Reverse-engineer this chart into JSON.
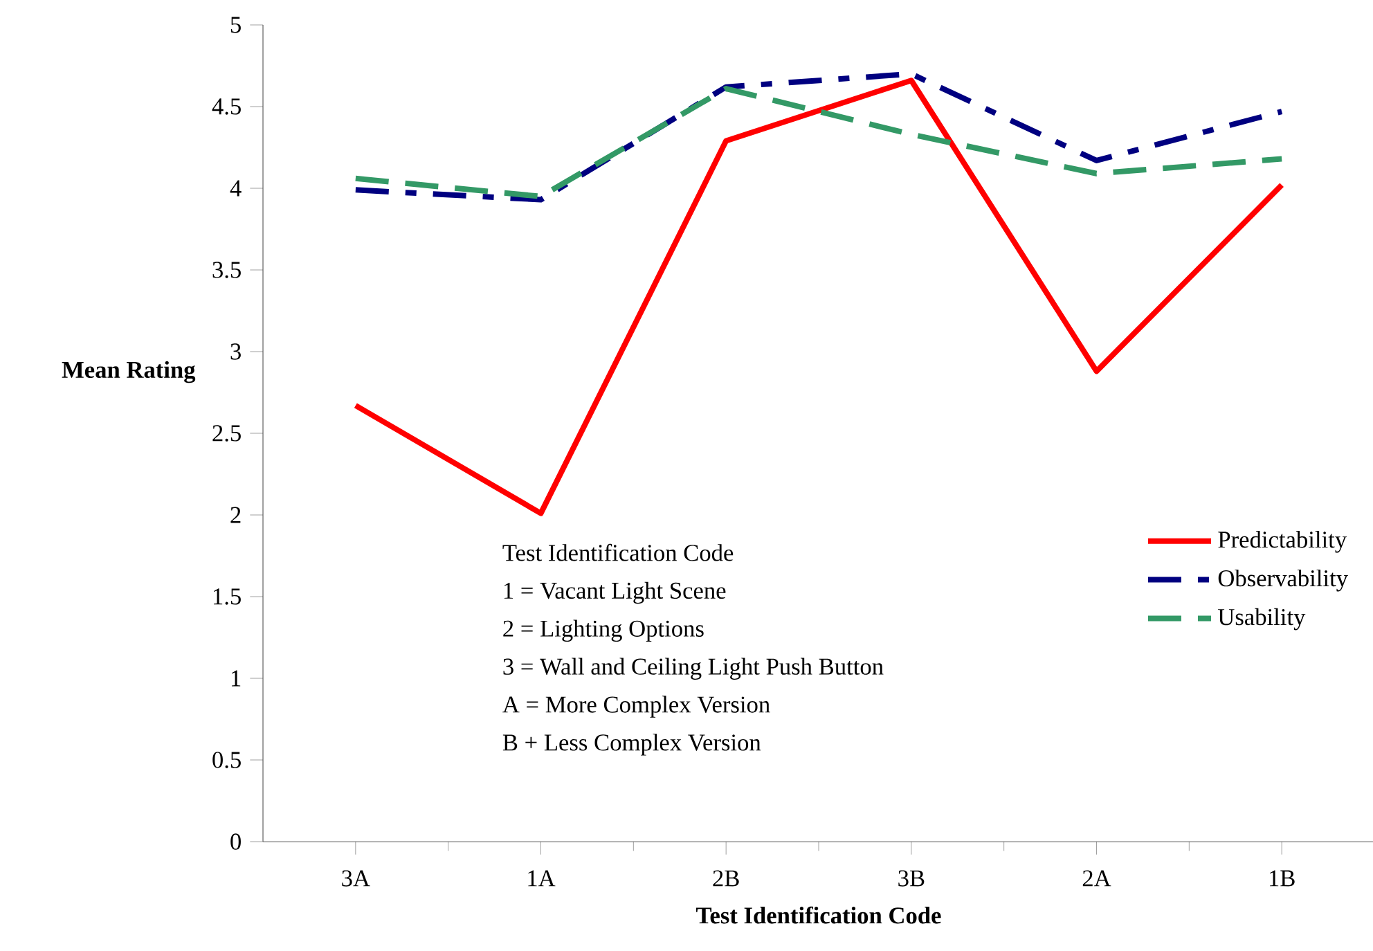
{
  "chart_data": {
    "type": "line",
    "xlabel": "Test Identification Code",
    "ylabel": "Mean Rating",
    "categories": [
      "3A",
      "1A",
      "2B",
      "3B",
      "2A",
      "1B"
    ],
    "series": [
      {
        "name": "Predictability",
        "color": "#ff0000",
        "line_style": "solid",
        "values": [
          2.67,
          2.01,
          4.29,
          4.66,
          2.88,
          4.02
        ]
      },
      {
        "name": "Observability",
        "color": "#000080",
        "line_style": "dashdot",
        "values": [
          3.99,
          3.93,
          4.62,
          4.7,
          4.17,
          4.47
        ]
      },
      {
        "name": "Usability",
        "color": "#339966",
        "line_style": "dashed",
        "values": [
          4.06,
          3.95,
          4.61,
          4.33,
          4.09,
          4.18
        ]
      }
    ],
    "ylim": [
      0,
      5
    ],
    "yticks": [
      0,
      0.5,
      1,
      1.5,
      2,
      2.5,
      3,
      3.5,
      4,
      4.5,
      5
    ],
    "grid": false,
    "legend": "bottom right",
    "marker": "none",
    "annotations": [
      "Test Identification Code",
      "1 = Vacant Light Scene",
      "2 = Lighting Options",
      "3 = Wall and Ceiling Light Push Button",
      "A = More Complex Version",
      "B + Less Complex Version"
    ]
  }
}
